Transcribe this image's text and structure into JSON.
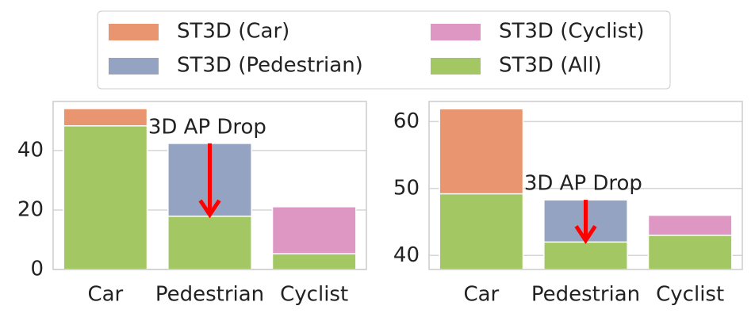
{
  "chart_data": [
    {
      "type": "bar",
      "categories": [
        "Car",
        "Pedestrian",
        "Cyclist"
      ],
      "series": [
        {
          "name": "ST3D (Car)",
          "color": "#e9956f",
          "values": [
            54.1,
            null,
            null
          ]
        },
        {
          "name": "ST3D (Pedestrian)",
          "color": "#95a3c3",
          "values": [
            null,
            42.4,
            null
          ]
        },
        {
          "name": "ST3D (Cyclist)",
          "color": "#dd97c2",
          "values": [
            null,
            null,
            21.1
          ]
        },
        {
          "name": "ST3D (All)",
          "color": "#a3c763",
          "values": [
            48.3,
            17.9,
            5.3
          ]
        }
      ],
      "ylim": [
        0,
        56.5
      ],
      "yticks": [
        0,
        20,
        40
      ],
      "grid": true,
      "annotation": "3D AP Drop",
      "arrow_color": "#ff0000"
    },
    {
      "type": "bar",
      "categories": [
        "Car",
        "Pedestrian",
        "Cyclist"
      ],
      "series": [
        {
          "name": "ST3D (Car)",
          "color": "#e9956f",
          "values": [
            61.9,
            null,
            null
          ]
        },
        {
          "name": "ST3D (Pedestrian)",
          "color": "#95a3c3",
          "values": [
            null,
            48.3,
            null
          ]
        },
        {
          "name": "ST3D (Cyclist)",
          "color": "#dd97c2",
          "values": [
            null,
            null,
            46.0
          ]
        },
        {
          "name": "ST3D (All)",
          "color": "#a3c763",
          "values": [
            49.2,
            42.0,
            43.0
          ]
        }
      ],
      "ylim": [
        37.9,
        63
      ],
      "yticks": [
        40,
        50,
        60
      ],
      "grid": true,
      "annotation": "3D AP Drop",
      "arrow_color": "#ff0000"
    }
  ]
}
